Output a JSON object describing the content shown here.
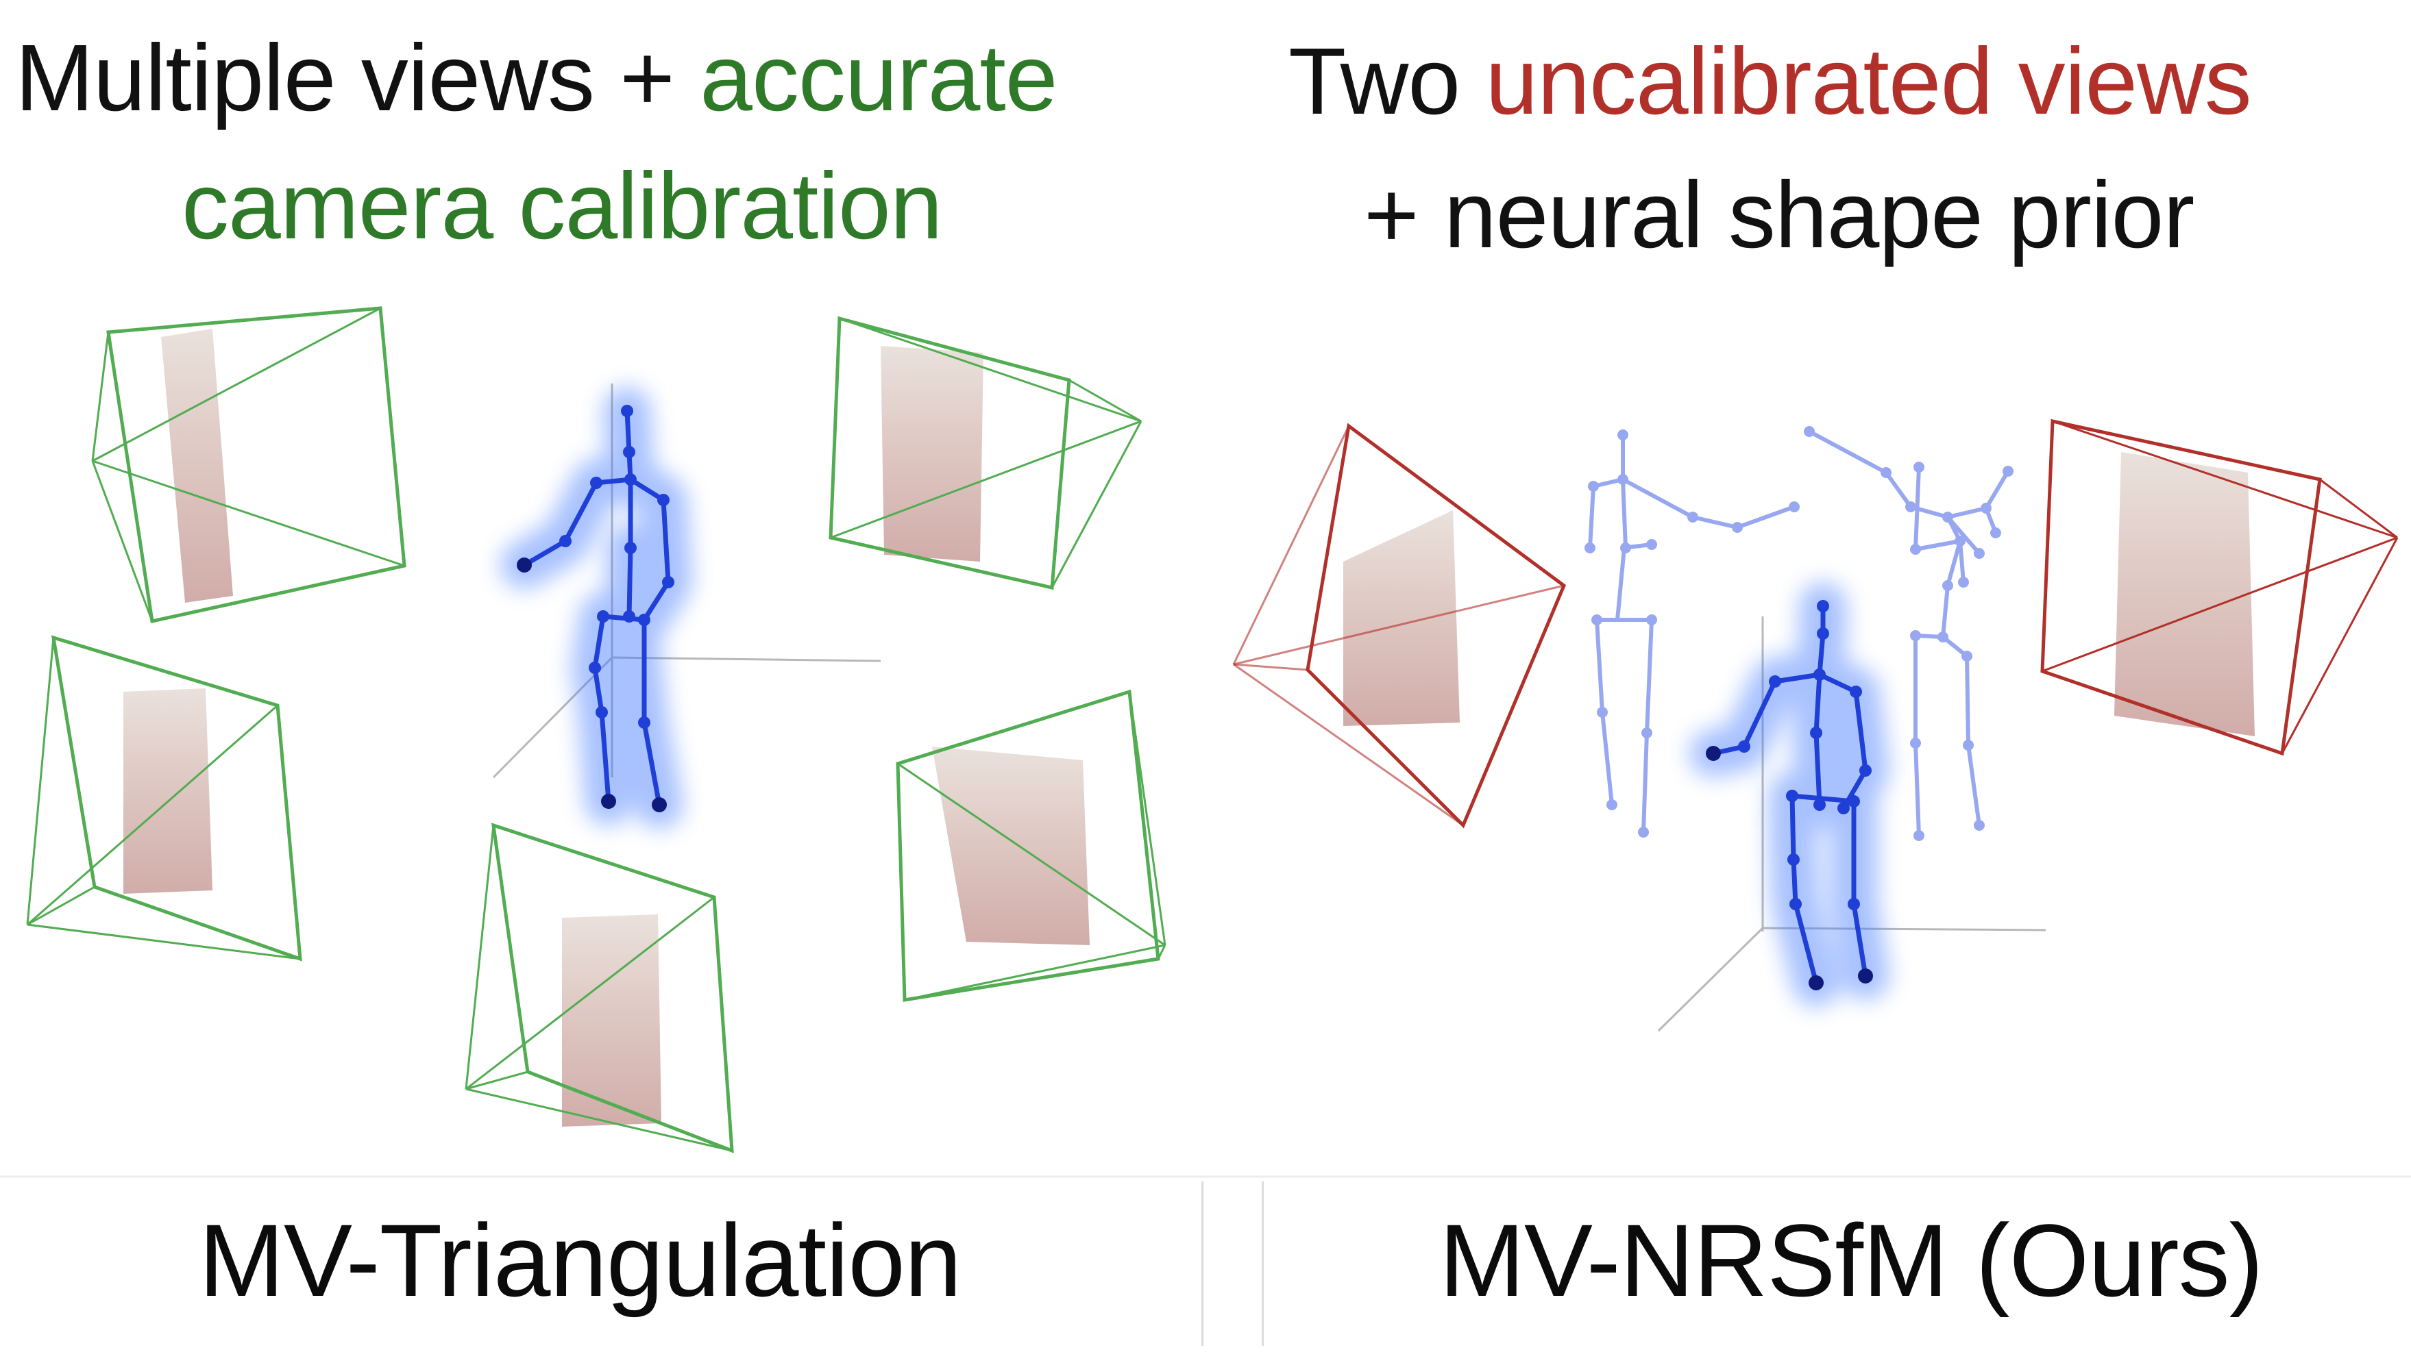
{
  "left": {
    "title_line1_part1": "Multiple views + ",
    "title_line1_part2": "accurate",
    "title_line2": "camera calibration",
    "caption": "MV-Triangulation",
    "accent_color": "#2e7a28"
  },
  "right": {
    "title_line1_part1": "Two ",
    "title_line1_part2": "uncalibrated views",
    "title_line2": "+ neural shape prior",
    "caption": "MV-NRSfM (Ours)",
    "accent_color": "#b2302a"
  },
  "skeleton_color": "#1f3fd6",
  "skeleton_faded_color": "#98a8f0"
}
